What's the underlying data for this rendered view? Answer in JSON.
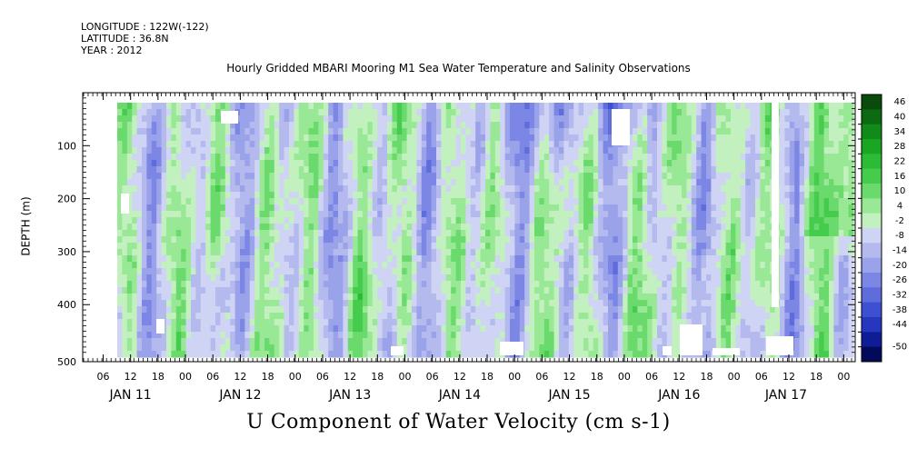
{
  "header": {
    "longitude": "LONGITUDE : 122W(-122)",
    "latitude": "LATITUDE : 36.8N",
    "year": "YEAR : 2012"
  },
  "chart_data": {
    "type": "heatmap",
    "title": "Hourly Gridded MBARI Mooring M1 Sea Water Temperature and Salinity Observations",
    "subtitle": "U Component of Water Velocity (cm s-1)",
    "ylabel": "DEPTH (m)",
    "ylim": [
      500,
      0
    ],
    "y_ticks": [
      100,
      200,
      300,
      400,
      500
    ],
    "x_hour_labels": [
      "06",
      "12",
      "18",
      "00",
      "06",
      "12",
      "18",
      "00",
      "06",
      "12",
      "18",
      "00",
      "06",
      "12",
      "18",
      "00",
      "06",
      "12",
      "18",
      "00",
      "06",
      "12",
      "18",
      "00",
      "06",
      "12",
      "18",
      "00"
    ],
    "x_day_labels": [
      "JAN 11",
      "JAN 12",
      "JAN 13",
      "JAN 14",
      "JAN 15",
      "JAN 16",
      "JAN 17"
    ],
    "colorbar": {
      "labels": [
        "46",
        "40",
        "34",
        "28",
        "22",
        "16",
        "10",
        "4",
        "-2",
        "-8",
        "-14",
        "-20",
        "-26",
        "-32",
        "-38",
        "-44",
        "-50"
      ],
      "colors": [
        "#0a4a0a",
        "#0b6a12",
        "#108a18",
        "#1aa522",
        "#2cbb34",
        "#46cc4c",
        "#6ada6c",
        "#98e896",
        "#c2f0be",
        "#d0d4f4",
        "#b4baee",
        "#9aa2ea",
        "#7c86e4",
        "#5e6cdc",
        "#3e50d2",
        "#2636be",
        "#0e1c96",
        "#040a5a"
      ]
    },
    "field_description": "Alternating vertical bands of positive (green) and negative (blue) U velocity across depth 20–490 m from JAN 10 ~09h to JAN 17 ~23h; strongest negative near surface on JAN 14–15; strongest positive near surface on JAN 17."
  }
}
